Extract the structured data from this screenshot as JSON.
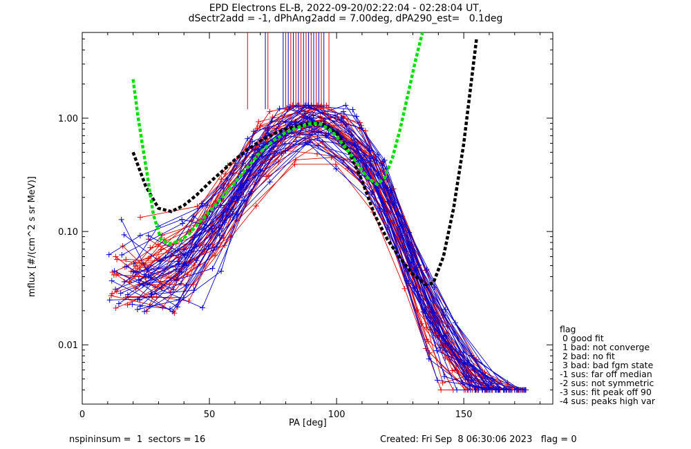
{
  "title_line1": "EPD Electrons EL-B, 2022-09-20/02:22:04 - 02:28:04 UT,",
  "title_line2": "dSectr2add = -1, dPhAng2add = 7.00deg, dPA290_est=   0.1deg",
  "footer_left": "nspininsum =  1  sectors = 16",
  "footer_right": "Created: Fri Sep  8 06:30:06 2023   flag = 0",
  "legend": {
    "title": "flag",
    "items": [
      " 0 good fit",
      " 1 bad: not converge",
      " 2 bad: no fit",
      " 3 bad: bad fgm state",
      "-1 sus: far off median",
      "-2 sus: not symmetric",
      "-3 sus: fit peak off 90",
      "-4 sus: peaks high var"
    ]
  },
  "colors": {
    "red_series": "#e00000",
    "blue_series": "#0000d0",
    "green_fit": "#00e000",
    "black_fit": "#000000"
  },
  "chart_data": {
    "type": "scatter",
    "xlabel": "PA [deg]",
    "ylabel": "mflux [#/(cm^2 s sr MeV)]",
    "xlim": [
      0,
      185
    ],
    "ylim": [
      0.003,
      5.7
    ],
    "yscale": "log",
    "x_ticks": [
      0,
      50,
      100,
      150
    ],
    "x_tick_labels": [
      "0",
      "50",
      "100",
      "150"
    ],
    "y_ticks": [
      0.01,
      0.1,
      1.0
    ],
    "y_tick_labels": [
      "0.01",
      "0.10",
      "1.00"
    ],
    "fit_curves": [
      {
        "color": "black",
        "style": "dashed",
        "x": [
          20,
          25,
          30,
          35,
          40,
          45,
          50,
          55,
          60,
          65,
          70,
          75,
          80,
          85,
          90,
          95,
          100,
          105,
          110,
          115,
          120,
          125,
          130,
          135,
          138,
          142,
          146,
          150,
          155
        ],
        "y": [
          0.5,
          0.25,
          0.16,
          0.15,
          0.17,
          0.21,
          0.27,
          0.34,
          0.43,
          0.53,
          0.63,
          0.72,
          0.8,
          0.86,
          0.9,
          0.88,
          0.74,
          0.5,
          0.28,
          0.14,
          0.085,
          0.058,
          0.042,
          0.034,
          0.035,
          0.06,
          0.16,
          0.6,
          5.0
        ]
      },
      {
        "color": "green",
        "style": "dashed",
        "x": [
          20,
          22,
          25,
          28,
          31,
          34,
          38,
          42,
          46,
          50,
          55,
          60,
          65,
          70,
          75,
          80,
          85,
          90,
          93,
          97,
          100,
          104,
          108,
          112,
          116,
          119,
          122,
          125,
          128,
          131,
          134
        ],
        "y": [
          2.2,
          1.0,
          0.38,
          0.14,
          0.085,
          0.078,
          0.082,
          0.095,
          0.12,
          0.15,
          0.2,
          0.27,
          0.37,
          0.5,
          0.63,
          0.75,
          0.83,
          0.9,
          0.9,
          0.8,
          0.69,
          0.53,
          0.4,
          0.3,
          0.26,
          0.3,
          0.45,
          0.8,
          1.6,
          3.2,
          6.0
        ]
      }
    ],
    "marker_lines_x": [
      65,
      72,
      73,
      79,
      80,
      81,
      82,
      83,
      84,
      85,
      86,
      87,
      88,
      89,
      90,
      91,
      92,
      93,
      94,
      95,
      97
    ]
  }
}
